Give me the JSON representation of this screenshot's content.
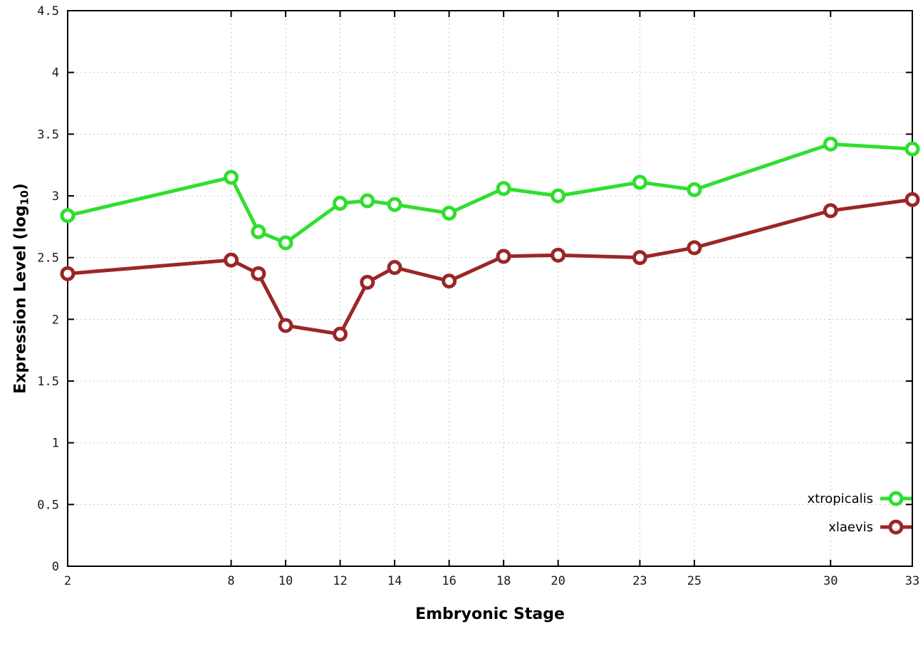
{
  "chart_data": {
    "type": "line",
    "title": "",
    "xlabel": "Embryonic Stage",
    "ylabel": {
      "prefix": "Expression Level (log",
      "sub": "10",
      "suffix": ")"
    },
    "x": [
      2,
      8,
      9,
      10,
      12,
      13,
      14,
      16,
      18,
      20,
      23,
      25,
      30,
      33
    ],
    "xlim": [
      2,
      33
    ],
    "ylim": [
      0,
      4.5
    ],
    "xticks": [
      2,
      8,
      10,
      12,
      14,
      16,
      18,
      20,
      23,
      25,
      30,
      33
    ],
    "yticks": [
      0,
      0.5,
      1,
      1.5,
      2,
      2.5,
      3,
      3.5,
      4,
      4.5
    ],
    "grid": true,
    "legend_position": "bottom-right",
    "colors": {
      "background": "#ffffff",
      "grid": "#c8c8c8",
      "axis": "#000000",
      "tick_text": "#1a1a1a"
    },
    "series": [
      {
        "name": "xtropicalis",
        "color": "#2fdf2f",
        "values": [
          2.84,
          3.15,
          2.71,
          2.62,
          2.94,
          2.96,
          2.93,
          2.86,
          3.06,
          3.0,
          3.11,
          3.05,
          3.42,
          3.38
        ]
      },
      {
        "name": "xlaevis",
        "color": "#9b2626",
        "values": [
          2.37,
          2.48,
          2.37,
          1.95,
          1.88,
          2.3,
          2.42,
          2.31,
          2.51,
          2.52,
          2.5,
          2.58,
          2.88,
          2.97
        ]
      }
    ]
  }
}
